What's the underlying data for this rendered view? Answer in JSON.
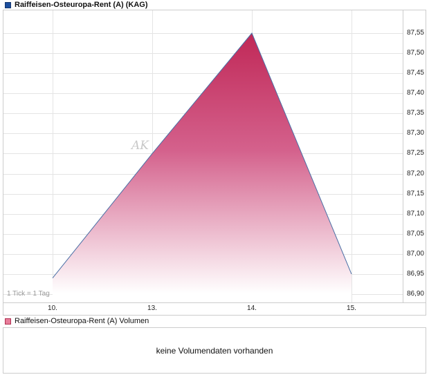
{
  "price_panel": {
    "legend": {
      "label": "Raiffeisen-Osteuropa-Rent (A) (KAG)"
    },
    "footnote": "1 Tick = 1 Tag",
    "watermark": "AK"
  },
  "volume_panel": {
    "legend": {
      "label": "Raiffeisen-Osteuropa-Rent (A) Volumen"
    },
    "message": "keine Volumendaten vorhanden"
  },
  "chart_data": {
    "type": "area",
    "title": "Raiffeisen-Osteuropa-Rent (A) (KAG)",
    "x_tick_labels": [
      "10.",
      "13.",
      "14.",
      "15."
    ],
    "points": [
      {
        "x": "10.",
        "value": 86.94
      },
      {
        "x": "13.",
        "value": 87.25
      },
      {
        "x": "14.",
        "value": 87.55
      },
      {
        "x": "15.",
        "value": 86.95
      }
    ],
    "y_ticks": [
      {
        "label": "87,55",
        "value": 87.55
      },
      {
        "label": "87,50",
        "value": 87.5
      },
      {
        "label": "87,45",
        "value": 87.45
      },
      {
        "label": "87,40",
        "value": 87.4
      },
      {
        "label": "87,35",
        "value": 87.35
      },
      {
        "label": "87,30",
        "value": 87.3
      },
      {
        "label": "87,25",
        "value": 87.25
      },
      {
        "label": "87,20",
        "value": 87.2
      },
      {
        "label": "87,15",
        "value": 87.15
      },
      {
        "label": "87,10",
        "value": 87.1
      },
      {
        "label": "87,05",
        "value": 87.05
      },
      {
        "label": "87,00",
        "value": 87.0
      },
      {
        "label": "86,95",
        "value": 86.95
      },
      {
        "label": "86,90",
        "value": 86.9
      }
    ],
    "ylim": [
      86.9,
      87.55
    ],
    "grid": true,
    "legend_position": "top-left",
    "x_note": "1 Tick = 1 Tag",
    "colors": {
      "line": "#4a6fa5",
      "area_top": "#c02857",
      "area_mid": "#d4618c",
      "area_bottom": "#ffffff",
      "grid": "#e4e4e4",
      "legend_price_fill": "#1c4e9e",
      "legend_price_border": "#16386e",
      "legend_volume_fill": "#e87d9a",
      "legend_volume_border": "#b03050"
    }
  }
}
